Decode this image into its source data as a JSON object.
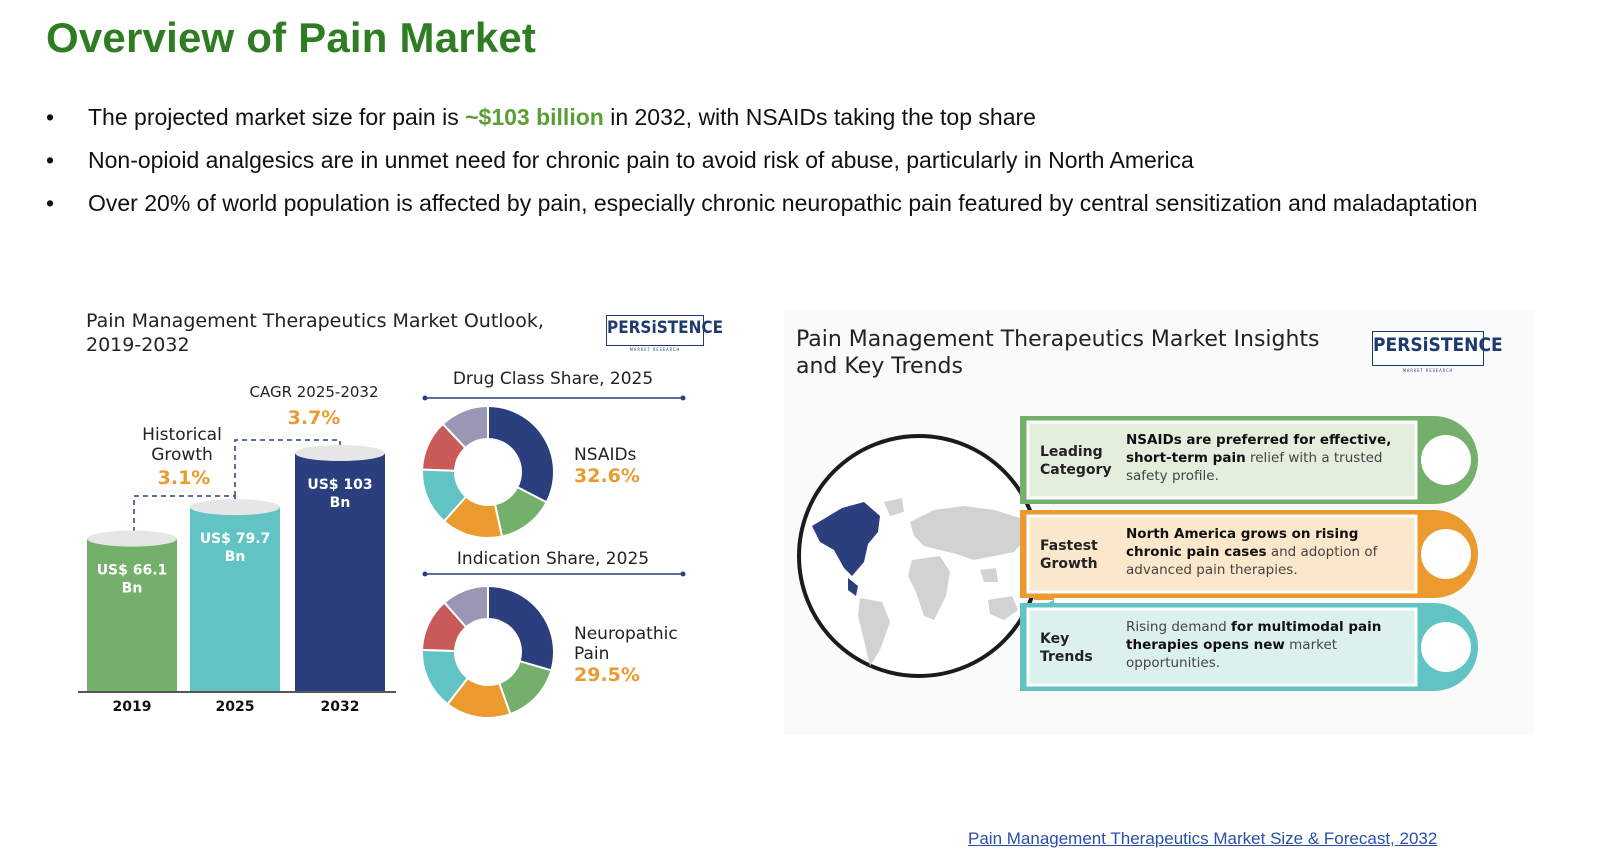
{
  "page": {
    "title": "Overview of Pain Market",
    "bullets": [
      {
        "before": "The projected market size for pain is ",
        "highlight": "~$103 billion",
        "after": " in 2032, with NSAIDs taking the top share"
      },
      {
        "before": "Non-opioid analgesics are in unmet need for chronic pain to avoid risk of abuse, particularly in North America",
        "highlight": "",
        "after": ""
      },
      {
        "before": "Over 20% of world population is affected by pain, especially chronic neuropathic pain featured by central sensitization and maladaptation",
        "highlight": "",
        "after": ""
      }
    ],
    "bullet_char": "•",
    "source_link": "Pain Management Therapeutics Market Size & Forecast, 2032",
    "colors": {
      "title": "#2e7d22",
      "highlight": "#5a9e35",
      "navy": "#2b3f7e",
      "teal": "#62c3c4",
      "green": "#74b06b",
      "orange": "#eb9a2f",
      "link": "#2a4fa8"
    }
  },
  "outlook": {
    "title_line1": "Pain Management Therapeutics Market Outlook,",
    "title_line2": "2019-2032",
    "logo": "PERSiSTENCE",
    "logo_sub": "MARKET RESEARCH",
    "cagr_label": "CAGR 2025-2032",
    "cagr_value": "3.7%",
    "hist_label_line1": "Historical",
    "hist_label_line2": "Growth",
    "hist_value": "3.1%",
    "drug_title": "Drug Class Share, 2025",
    "drug_label": "NSAIDs",
    "drug_value": "32.6%",
    "ind_title": "Indication Share, 2025",
    "ind_label_line1": "Neuropathic",
    "ind_label_line2": "Pain",
    "ind_value": "29.5%"
  },
  "chart_data": [
    {
      "type": "bar",
      "title": "Pain Management Therapeutics Market Outlook, 2019-2032",
      "categories": [
        "2019",
        "2025",
        "2032"
      ],
      "values": [
        66.1,
        79.7,
        103
      ],
      "value_labels_line1": [
        "US$ 66.1",
        "US$ 79.7",
        "US$ 103"
      ],
      "value_labels_line2": [
        "Bn",
        "Bn",
        "Bn"
      ],
      "colors": [
        "#74b06b",
        "#62c3c4",
        "#2b3f7e"
      ],
      "unit": "US$ Bn"
    },
    {
      "type": "pie",
      "title": "Drug Class Share, 2025",
      "slices": [
        {
          "value": 32.6,
          "color": "#2b3f7e"
        },
        {
          "value": 14,
          "color": "#74b06b"
        },
        {
          "value": 15,
          "color": "#eb9a2f"
        },
        {
          "value": 14,
          "color": "#62c3c4"
        },
        {
          "value": 12.4,
          "color": "#c95a5a"
        },
        {
          "value": 12,
          "color": "#9a97b4"
        }
      ],
      "highlight": {
        "label": "NSAIDs",
        "value": 32.6
      }
    },
    {
      "type": "pie",
      "title": "Indication Share, 2025",
      "slices": [
        {
          "value": 29.5,
          "color": "#2b3f7e"
        },
        {
          "value": 15,
          "color": "#74b06b"
        },
        {
          "value": 16,
          "color": "#eb9a2f"
        },
        {
          "value": 15,
          "color": "#62c3c4"
        },
        {
          "value": 13,
          "color": "#c95a5a"
        },
        {
          "value": 11.5,
          "color": "#9a97b4"
        }
      ],
      "highlight": {
        "label": "Neuropathic Pain",
        "value": 29.5
      }
    }
  ],
  "insights": {
    "title_line1": "Pain Management Therapeutics Market Insights",
    "title_line2": "and Key Trends",
    "logo": "PERSiSTENCE",
    "logo_sub": "MARKET RESEARCH",
    "rows": [
      {
        "label_line1": "Leading",
        "label_line2": "Category",
        "lines": [
          [
            {
              "t": "NSAIDs are preferred for effective,",
              "b": true
            }
          ],
          [
            {
              "t": "short-term pain",
              "b": true
            },
            {
              "t": " relief with a trusted",
              "b": false
            }
          ],
          [
            {
              "t": "safety profile.",
              "b": false
            }
          ]
        ],
        "color": "#74b06b",
        "fill": "#e3eedc"
      },
      {
        "label_line1": "Fastest",
        "label_line2": "Growth",
        "lines": [
          [
            {
              "t": "North America grows on rising",
              "b": true
            }
          ],
          [
            {
              "t": "chronic pain cases",
              "b": true
            },
            {
              "t": " and adoption of",
              "b": false
            }
          ],
          [
            {
              "t": "advanced pain therapies.",
              "b": false
            }
          ]
        ],
        "color": "#eb9a2f",
        "fill": "#fbe7cc"
      },
      {
        "label_line1": "Key",
        "label_line2": "Trends",
        "lines": [
          [
            {
              "t": "Rising demand ",
              "b": false
            },
            {
              "t": "for multimodal pain",
              "b": true
            }
          ],
          [
            {
              "t": "therapies opens new",
              "b": true
            },
            {
              "t": " market",
              "b": false
            }
          ],
          [
            {
              "t": "opportunities.",
              "b": false
            }
          ]
        ],
        "color": "#62c3c4",
        "fill": "#dcf0f0"
      }
    ]
  }
}
